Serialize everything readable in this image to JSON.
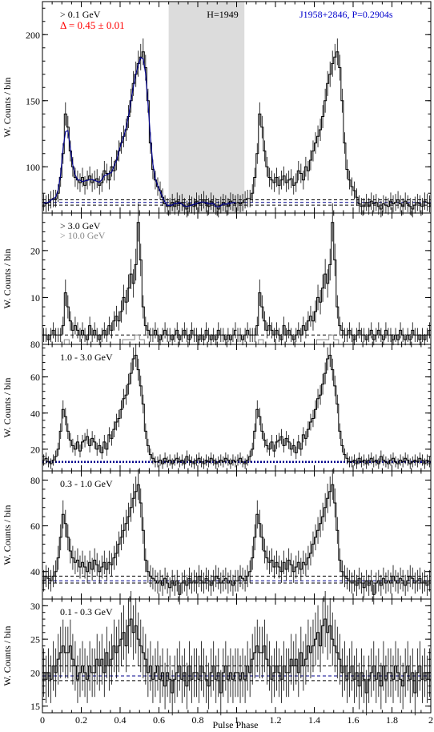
{
  "colors": {
    "axis": "#000000",
    "hist": "#000000",
    "fit": "#00008b",
    "dash_black": "#000000",
    "dash_blue": "#00008b",
    "shade": "#dcdcdc",
    "red": "#ff0000",
    "blue": "#0000cc",
    "gray": "#888888"
  },
  "xlabel": "Pulse Phase",
  "xlim": [
    0,
    2
  ],
  "xticks": [
    0,
    0.2,
    0.4,
    0.6,
    0.8,
    1,
    1.2,
    1.4,
    1.6,
    1.8,
    2
  ],
  "xtick_labels": [
    "0",
    "0.2",
    "0.4",
    "0.6",
    "0.8",
    "1",
    "1.2",
    "1.4",
    "1.6",
    "1.8",
    "2"
  ],
  "chart_data": [
    {
      "type": "line",
      "band": "> 0.1 GeV",
      "ylabel": "W. Counts / bin",
      "ylim": [
        65,
        225
      ],
      "yticks": [
        100,
        150,
        200
      ],
      "ytick_labels": [
        "100",
        "150",
        "200"
      ],
      "annotations": {
        "delta": "Δ = 0.45 ± 0.01",
        "h": "H=1949",
        "pulsar": "J1958+2846, P=0.2904s"
      },
      "shaded_region": [
        0.65,
        1.04
      ],
      "background_levels": {
        "upper": 75,
        "middle": 73,
        "lower": 71
      },
      "fit_range": [
        0,
        1
      ],
      "hist": [
        73,
        72,
        73,
        75,
        76,
        76,
        80,
        92,
        110,
        140,
        130,
        112,
        100,
        92,
        90,
        88,
        92,
        86,
        90,
        93,
        88,
        90,
        91,
        86,
        88,
        97,
        95,
        90,
        100,
        97,
        105,
        112,
        118,
        123,
        128,
        138,
        150,
        163,
        170,
        178,
        183,
        187,
        175,
        150,
        118,
        98,
        90,
        85,
        82,
        77,
        72,
        70,
        70,
        73,
        70,
        74,
        72,
        73,
        70,
        68,
        72,
        71,
        70,
        74,
        72,
        73,
        75,
        72,
        70,
        74,
        72,
        70,
        68,
        71,
        73,
        72,
        70,
        74,
        73,
        72
      ]
    },
    {
      "type": "line",
      "band": "> 3.0 GeV",
      "band2": "> 10.0 GeV",
      "ylabel": "W. Counts / bin",
      "ylim": [
        0,
        28
      ],
      "yticks": [
        10,
        20
      ],
      "ytick_labels": [
        "10",
        "20"
      ],
      "extra_tick": "80",
      "background_level": 2,
      "hist": [
        2,
        2,
        1,
        2,
        3,
        2,
        2,
        2,
        4,
        11,
        8,
        5,
        3,
        4,
        3,
        2,
        3,
        2,
        1,
        4,
        2,
        3,
        2,
        1,
        2,
        3,
        2,
        4,
        3,
        5,
        6,
        5,
        7,
        10,
        9,
        12,
        15,
        13,
        17,
        26,
        18,
        8,
        4,
        3,
        2,
        2,
        3,
        2,
        1,
        2,
        3,
        2,
        2,
        1,
        2,
        3,
        1,
        2,
        3,
        2,
        1,
        3,
        2,
        2,
        1,
        2,
        1,
        3,
        2,
        1,
        2,
        1,
        3,
        2,
        2,
        1,
        2,
        1,
        2,
        3
      ],
      "hist_high": [
        0,
        0,
        0,
        0,
        0,
        0,
        0,
        0,
        0,
        1,
        1,
        0,
        0,
        0,
        0,
        0,
        0,
        0,
        0,
        0,
        0,
        0,
        0,
        0,
        0,
        0,
        0,
        0,
        0,
        0,
        0,
        0,
        0,
        1,
        1,
        1,
        1,
        1,
        2,
        2,
        1,
        1,
        0,
        0,
        0,
        0,
        0,
        0,
        0,
        0,
        0,
        0,
        0,
        0,
        0,
        0,
        0,
        0,
        0,
        0,
        0,
        0,
        0,
        0,
        0,
        0,
        0,
        0,
        0,
        0,
        0,
        0,
        0,
        0,
        0,
        0,
        0,
        0,
        0,
        0
      ]
    },
    {
      "type": "line",
      "band": "1.0 - 3.0 GeV",
      "ylabel": "W. Counts / bin",
      "ylim": [
        8,
        78
      ],
      "yticks": [
        20,
        40,
        60
      ],
      "ytick_labels": [
        "20",
        "40",
        "60"
      ],
      "background_level": 13,
      "hist": [
        14,
        15,
        13,
        12,
        14,
        16,
        20,
        30,
        42,
        38,
        30,
        25,
        22,
        20,
        24,
        19,
        24,
        25,
        27,
        22,
        26,
        24,
        20,
        22,
        18,
        24,
        20,
        28,
        26,
        31,
        35,
        37,
        42,
        48,
        50,
        56,
        62,
        70,
        72,
        64,
        55,
        45,
        30,
        22,
        17,
        15,
        13,
        13,
        14,
        12,
        15,
        13,
        14,
        12,
        14,
        15,
        13,
        14,
        12,
        16,
        14,
        13,
        12,
        14,
        15,
        13,
        12,
        14,
        13,
        15,
        14,
        12,
        13,
        14,
        13,
        15,
        14,
        12,
        14,
        13
      ]
    },
    {
      "type": "line",
      "band": "0.3 - 1.0 GeV",
      "ylabel": "W. Counts / bin",
      "ylim": [
        28,
        84
      ],
      "yticks": [
        40,
        60,
        80
      ],
      "ytick_labels": [
        "40",
        "60",
        "80"
      ],
      "background_levels": {
        "upper": 38,
        "middle": 36,
        "lower": 35
      },
      "hist": [
        36,
        38,
        37,
        36,
        38,
        40,
        46,
        55,
        65,
        61,
        55,
        49,
        46,
        44,
        45,
        42,
        44,
        42,
        40,
        44,
        41,
        45,
        43,
        40,
        42,
        44,
        41,
        44,
        43,
        46,
        48,
        52,
        55,
        58,
        61,
        64,
        68,
        72,
        75,
        78,
        70,
        58,
        45,
        40,
        38,
        37,
        36,
        35,
        36,
        34,
        37,
        35,
        33,
        36,
        34,
        36,
        30,
        35,
        36,
        34,
        37,
        35,
        36,
        35,
        38,
        36,
        35,
        37,
        36,
        34,
        36,
        38,
        37,
        35,
        36,
        37,
        35,
        36,
        34,
        36
      ]
    },
    {
      "type": "line",
      "band": "0.1 - 0.3 GeV",
      "ylabel": "W. Counts / bin",
      "ylim": [
        14,
        31
      ],
      "yticks": [
        15,
        20,
        25,
        30
      ],
      "ytick_labels": [
        "15",
        "20",
        "25",
        "30"
      ],
      "background_levels": {
        "upper": 21,
        "middle": 19.5,
        "lower": 18.8
      },
      "hist": [
        20,
        19,
        20,
        19,
        21,
        20,
        22,
        23,
        24,
        23,
        23,
        24,
        22,
        21,
        19,
        20,
        21,
        20,
        19,
        21,
        20,
        20,
        22,
        21,
        22,
        20,
        23,
        21,
        22,
        24,
        23,
        24,
        25,
        26,
        24,
        27,
        28,
        26,
        27,
        25,
        24,
        23,
        22,
        20,
        21,
        19,
        20,
        21,
        19,
        20,
        18,
        20,
        19,
        17,
        19,
        20,
        21,
        19,
        20,
        18,
        21,
        19,
        20,
        20,
        19,
        21,
        20,
        19,
        18,
        20,
        21,
        19,
        20,
        17,
        20,
        21,
        19,
        20,
        19,
        20
      ]
    }
  ]
}
